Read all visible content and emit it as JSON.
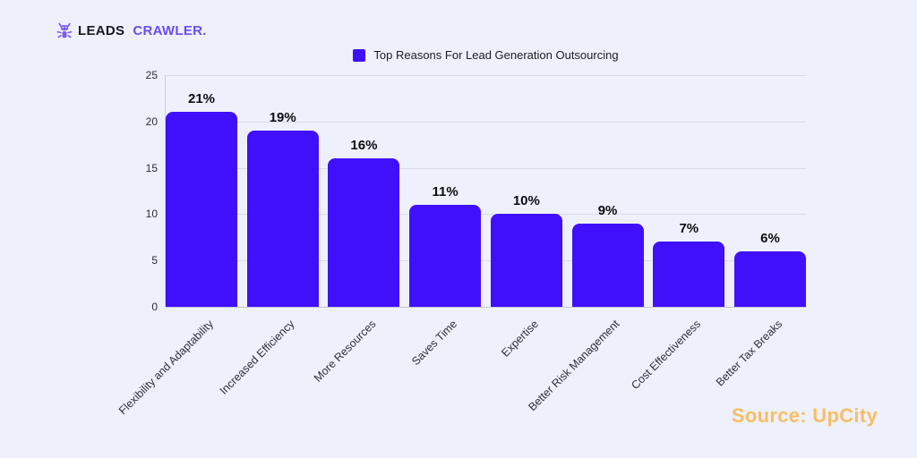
{
  "page": {
    "background": "#EEF1FB"
  },
  "logo": {
    "icon": "crawler-bug-icon",
    "icon_color": "#7B5CF3",
    "text_leads": "LEADS",
    "text_crawler": "CRAWLER.",
    "leads_color": "#17171F",
    "crawler_color": "#6A4DF0"
  },
  "legend": {
    "label": "Top Reasons For Lead Generation Outsourcing",
    "swatch_color": "#4110FA"
  },
  "source": {
    "label": "Source: UpCity",
    "color": "#F8BE65"
  },
  "chart_data": {
    "type": "bar",
    "title": "Top Reasons For Lead Generation Outsourcing",
    "categories": [
      "Flexibility and Adaptability",
      "Increased Efficiency",
      "More Resources",
      "Saves Time",
      "Expertise",
      "Better Risk Management",
      "Cost Effectiveness",
      "Better Tax Breaks"
    ],
    "values": [
      21,
      19,
      16,
      11,
      10,
      9,
      7,
      6
    ],
    "value_labels": [
      "21%",
      "19%",
      "16%",
      "11%",
      "10%",
      "9%",
      "7%",
      "6%"
    ],
    "xlabel": "",
    "ylabel": "",
    "ylim": [
      0,
      25
    ],
    "yticks": [
      0,
      5,
      10,
      15,
      20,
      25
    ],
    "bar_color": "#4110FA",
    "grid": true,
    "gridline_color": "#D9DCE6",
    "legend_position": "top-center",
    "xtick_rotation_deg": 45
  }
}
